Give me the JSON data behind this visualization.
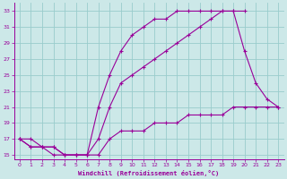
{
  "xlabel": "Windchill (Refroidissement éolien,°C)",
  "xlim": [
    -0.5,
    23.5
  ],
  "ylim": [
    14.5,
    34
  ],
  "xticks": [
    0,
    1,
    2,
    3,
    4,
    5,
    6,
    7,
    8,
    9,
    10,
    11,
    12,
    13,
    14,
    15,
    16,
    17,
    18,
    19,
    20,
    21,
    22,
    23
  ],
  "yticks": [
    15,
    17,
    19,
    21,
    23,
    25,
    27,
    29,
    31,
    33
  ],
  "bg_color": "#cce8e8",
  "line_color": "#990099",
  "grid_color": "#99cccc",
  "curve1_x": [
    0,
    1,
    2,
    3,
    4,
    5,
    6,
    7,
    8,
    9,
    10,
    11,
    12,
    13,
    14,
    15,
    16,
    17,
    18,
    19,
    20
  ],
  "curve1_y": [
    17,
    17,
    16,
    16,
    15,
    15,
    15,
    21,
    25,
    28,
    30,
    31,
    32,
    32,
    33,
    33,
    33,
    33,
    33,
    33,
    33
  ],
  "curve2_x": [
    0,
    1,
    2,
    3,
    4,
    5,
    6,
    7,
    8,
    9,
    10,
    11,
    12,
    13,
    14,
    15,
    16,
    17,
    18,
    19,
    20,
    21,
    22,
    23
  ],
  "curve2_y": [
    17,
    16,
    16,
    15,
    15,
    15,
    15,
    17,
    21,
    24,
    25,
    26,
    27,
    28,
    29,
    30,
    31,
    32,
    33,
    33,
    28,
    24,
    22,
    21
  ],
  "curve3_x": [
    0,
    1,
    2,
    3,
    4,
    5,
    6,
    7,
    8,
    9,
    10,
    11,
    12,
    13,
    14,
    15,
    16,
    17,
    18,
    19,
    20,
    21,
    22,
    23
  ],
  "curve3_y": [
    17,
    16,
    16,
    16,
    15,
    15,
    15,
    15,
    17,
    18,
    18,
    18,
    19,
    19,
    19,
    20,
    20,
    20,
    20,
    21,
    21,
    21,
    21,
    21
  ]
}
